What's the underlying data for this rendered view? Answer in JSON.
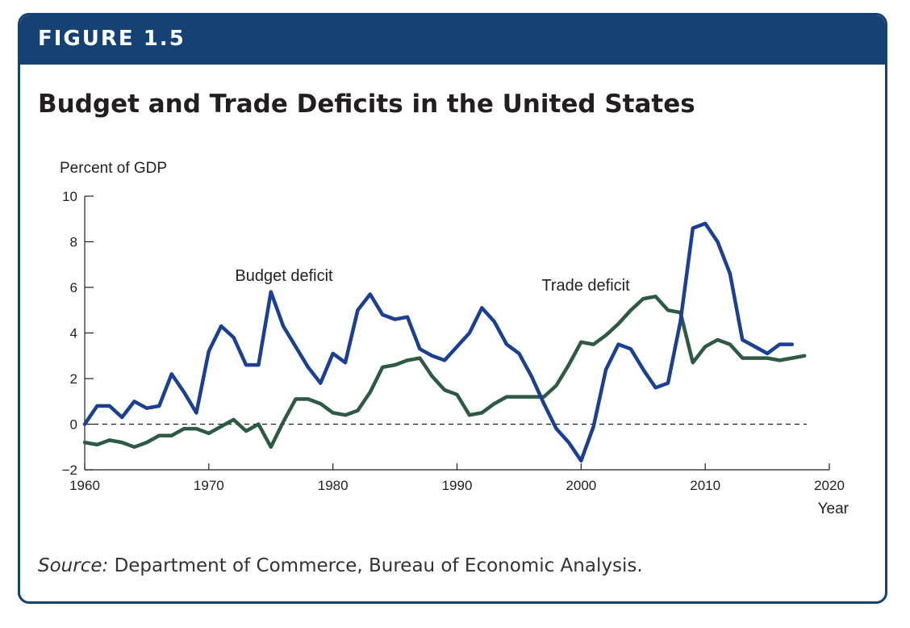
{
  "figure": {
    "label": "FIGURE 1.5",
    "title": "Budget and Trade Deficits in the United States",
    "source_prefix": "Source:",
    "source_text": "Department of Commerce, Bureau of Economic Analysis."
  },
  "colors": {
    "banner": "#154273",
    "budget": "#1a3f94",
    "trade": "#2e5a45"
  },
  "chart_data": {
    "type": "line",
    "ylabel": "Percent of GDP",
    "xlabel": "Year",
    "xlim": [
      1960,
      2020
    ],
    "ylim": [
      -2,
      10
    ],
    "xticks": [
      1960,
      1970,
      1980,
      1990,
      2000,
      2010,
      2020
    ],
    "yticks": [
      -2,
      0,
      2,
      4,
      6,
      8,
      10
    ],
    "ytick_labels": [
      "−2",
      "0",
      "2",
      "4",
      "6",
      "8",
      "10"
    ],
    "reference_line": {
      "y": 0,
      "style": "dashed"
    },
    "grid": false,
    "series": [
      {
        "name": "Budget deficit",
        "x": [
          1960,
          1961,
          1962,
          1963,
          1964,
          1965,
          1966,
          1967,
          1968,
          1969,
          1970,
          1971,
          1972,
          1973,
          1974,
          1975,
          1976,
          1977,
          1978,
          1979,
          1980,
          1981,
          1982,
          1983,
          1984,
          1985,
          1986,
          1987,
          1988,
          1989,
          1990,
          1991,
          1992,
          1993,
          1994,
          1995,
          1996,
          1997,
          1998,
          1999,
          2000,
          2001,
          2002,
          2003,
          2004,
          2005,
          2006,
          2007,
          2008,
          2009,
          2010,
          2011,
          2012,
          2013,
          2014,
          2015,
          2016,
          2017
        ],
        "values": [
          0.0,
          0.8,
          0.8,
          0.3,
          1.0,
          0.7,
          0.8,
          2.2,
          1.4,
          0.5,
          3.2,
          4.3,
          3.8,
          2.6,
          2.6,
          5.8,
          4.3,
          3.4,
          2.5,
          1.8,
          3.1,
          2.7,
          5.0,
          5.7,
          4.8,
          4.6,
          4.7,
          3.3,
          3.0,
          2.8,
          3.4,
          4.0,
          5.1,
          4.5,
          3.5,
          3.1,
          2.1,
          0.9,
          -0.2,
          -0.8,
          -1.6,
          -0.1,
          2.4,
          3.5,
          3.3,
          2.4,
          1.6,
          1.8,
          4.5,
          8.6,
          8.8,
          8.0,
          6.6,
          3.7,
          3.4,
          3.1,
          3.5,
          3.5
        ]
      },
      {
        "name": "Trade deficit",
        "x": [
          1960,
          1961,
          1962,
          1963,
          1964,
          1965,
          1966,
          1967,
          1968,
          1969,
          1970,
          1971,
          1972,
          1973,
          1974,
          1975,
          1976,
          1977,
          1978,
          1979,
          1980,
          1981,
          1982,
          1983,
          1984,
          1985,
          1986,
          1987,
          1988,
          1989,
          1990,
          1991,
          1992,
          1993,
          1994,
          1995,
          1996,
          1997,
          1998,
          1999,
          2000,
          2001,
          2002,
          2003,
          2004,
          2005,
          2006,
          2007,
          2008,
          2009,
          2010,
          2011,
          2012,
          2013,
          2014,
          2015,
          2016,
          2017,
          2018
        ],
        "values": [
          -0.8,
          -0.9,
          -0.7,
          -0.8,
          -1.0,
          -0.8,
          -0.5,
          -0.5,
          -0.2,
          -0.2,
          -0.4,
          -0.1,
          0.2,
          -0.3,
          0.0,
          -1.0,
          0.1,
          1.1,
          1.1,
          0.9,
          0.5,
          0.4,
          0.6,
          1.4,
          2.5,
          2.6,
          2.8,
          2.9,
          2.1,
          1.5,
          1.3,
          0.4,
          0.5,
          0.9,
          1.2,
          1.2,
          1.2,
          1.2,
          1.7,
          2.6,
          3.6,
          3.5,
          3.9,
          4.4,
          5.0,
          5.5,
          5.6,
          5.0,
          4.9,
          2.7,
          3.4,
          3.7,
          3.5,
          2.9,
          2.9,
          2.9,
          2.8,
          2.9,
          3.0
        ]
      }
    ],
    "annotations": [
      {
        "text": "Budget deficit",
        "series": 0
      },
      {
        "text": "Trade deficit",
        "series": 1
      }
    ]
  }
}
